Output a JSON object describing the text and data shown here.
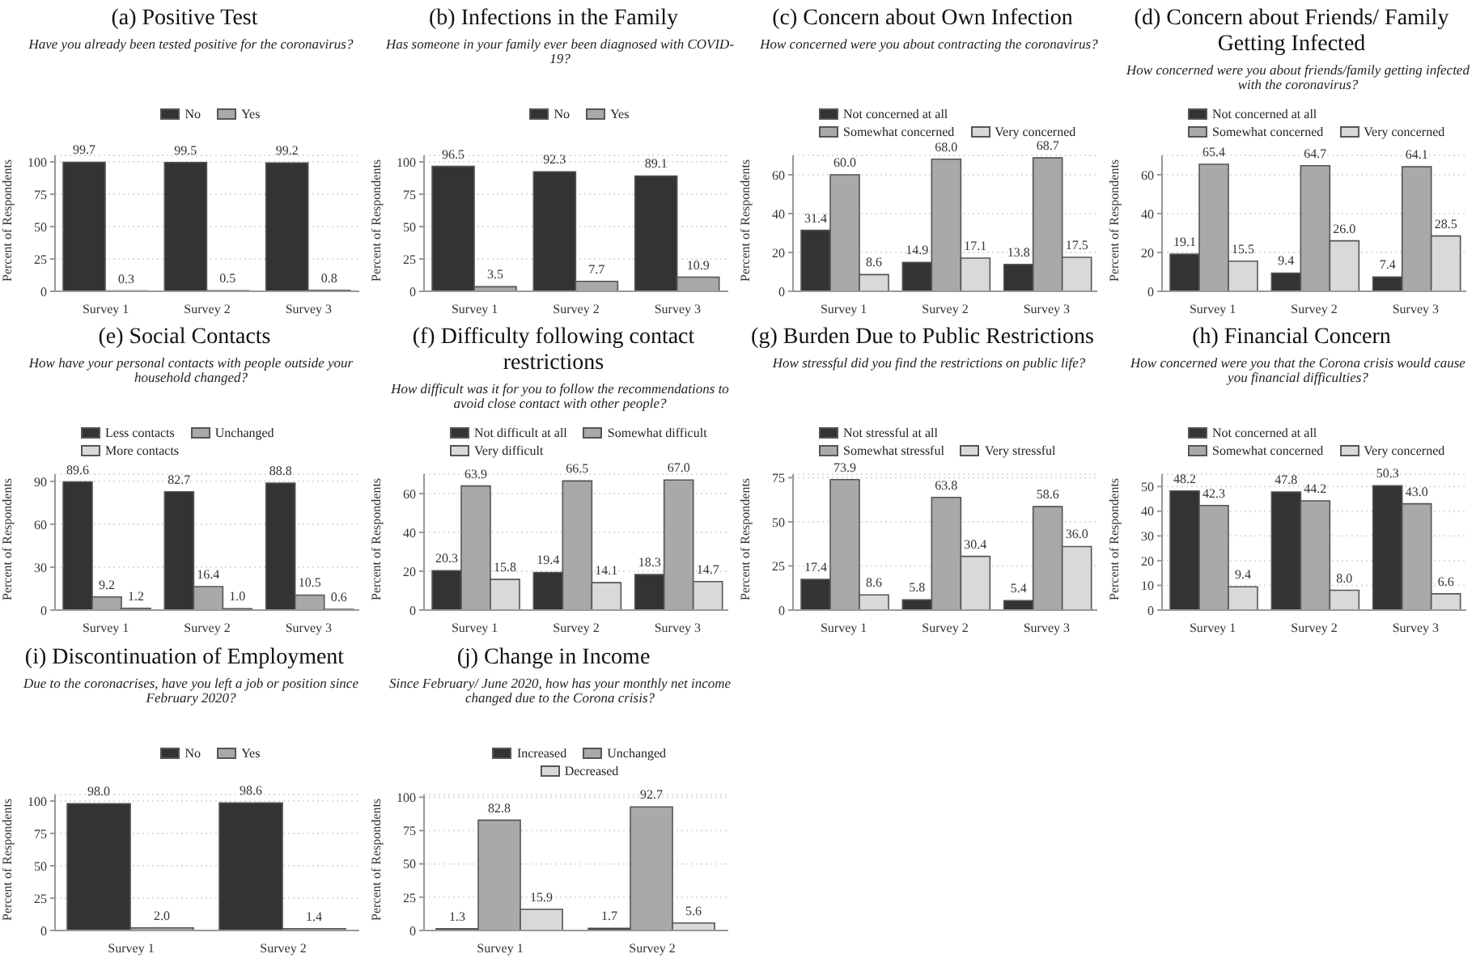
{
  "chart_data": [
    {
      "type": "bar",
      "title": "(a) Positive Test",
      "subtitle": "Have you already been tested positive for the coronavirus?",
      "ylabel": "Percent of Respondents",
      "categories": [
        "Survey 1",
        "Survey 2",
        "Survey 3"
      ],
      "series": [
        {
          "name": "No",
          "color": "#333333",
          "values": [
            99.7,
            99.5,
            99.2
          ],
          "value_labels": [
            "99.7",
            "99.5",
            "99.2"
          ]
        },
        {
          "name": "Yes",
          "color": "#a9a9a9",
          "values": [
            0.3,
            0.5,
            0.8
          ],
          "value_labels": [
            "0.3",
            "0.5",
            "0.8"
          ]
        }
      ],
      "ylim": [
        0,
        105
      ],
      "yticks": [
        0,
        25,
        50,
        75,
        100
      ],
      "grid": "y",
      "legend": "top"
    },
    {
      "type": "bar",
      "title": "(b) Infections in the Family",
      "subtitle": "Has someone in your family ever been diagnosed with COVID-19?",
      "ylabel": "Percent of Respondents",
      "categories": [
        "Survey 1",
        "Survey 2",
        "Survey 3"
      ],
      "series": [
        {
          "name": "No",
          "color": "#333333",
          "values": [
            96.5,
            92.3,
            89.1
          ],
          "value_labels": [
            "96.5",
            "92.3",
            "89.1"
          ]
        },
        {
          "name": "Yes",
          "color": "#a9a9a9",
          "values": [
            3.5,
            7.7,
            10.9
          ],
          "value_labels": [
            "3.5",
            "7.7",
            "10.9"
          ]
        }
      ],
      "ylim": [
        0,
        105
      ],
      "yticks": [
        0,
        25,
        50,
        75,
        100
      ],
      "grid": "y",
      "legend": "top"
    },
    {
      "type": "bar",
      "title": "(c) Concern about Own Infection",
      "subtitle": "How concerned were you about contracting the coronavirus?",
      "ylabel": "Percent of Respondents",
      "categories": [
        "Survey 1",
        "Survey 2",
        "Survey 3"
      ],
      "series": [
        {
          "name": "Not concerned at all",
          "color": "#333333",
          "values": [
            31.4,
            14.9,
            13.8
          ],
          "value_labels": [
            "31.4",
            "14.9",
            "13.8"
          ]
        },
        {
          "name": "Somewhat concerned",
          "color": "#a9a9a9",
          "values": [
            60.0,
            68.0,
            68.7
          ],
          "value_labels": [
            "60.0",
            "68.0",
            "68.7"
          ]
        },
        {
          "name": "Very concerned",
          "color": "#d9d9d9",
          "values": [
            8.6,
            17.1,
            17.5
          ],
          "value_labels": [
            "8.6",
            "17.1",
            "17.5"
          ]
        }
      ],
      "ylim": [
        0,
        70
      ],
      "yticks": [
        0,
        20,
        40,
        60
      ],
      "grid": "y",
      "legend": "top"
    },
    {
      "type": "bar",
      "title": "(d) Concern about Friends/ Family Getting Infected",
      "subtitle": "How concerned were you about friends/family getting infected with the coronavirus?",
      "ylabel": "Percent of Respondents",
      "categories": [
        "Survey 1",
        "Survey 2",
        "Survey 3"
      ],
      "series": [
        {
          "name": "Not concerned at all",
          "color": "#333333",
          "values": [
            19.1,
            9.4,
            7.4
          ],
          "value_labels": [
            "19.1",
            "9.4",
            "7.4"
          ]
        },
        {
          "name": "Somewhat concerned",
          "color": "#a9a9a9",
          "values": [
            65.4,
            64.7,
            64.1
          ],
          "value_labels": [
            "65.4",
            "64.7",
            "64.1"
          ]
        },
        {
          "name": "Very concerned",
          "color": "#d9d9d9",
          "values": [
            15.5,
            26.0,
            28.5
          ],
          "value_labels": [
            "15.5",
            "26.0",
            "28.5"
          ]
        }
      ],
      "ylim": [
        0,
        70
      ],
      "yticks": [
        0,
        20,
        40,
        60
      ],
      "grid": "y",
      "legend": "top"
    },
    {
      "type": "bar",
      "title": "(e) Social Contacts",
      "subtitle": "How have your personal contacts with people outside your household changed?",
      "ylabel": "Percent of Respondents",
      "categories": [
        "Survey 1",
        "Survey 2",
        "Survey 3"
      ],
      "series": [
        {
          "name": "Less contacts",
          "color": "#333333",
          "values": [
            89.6,
            82.7,
            88.8
          ],
          "value_labels": [
            "89.6",
            "82.7",
            "88.8"
          ]
        },
        {
          "name": "Unchanged",
          "color": "#a9a9a9",
          "values": [
            9.2,
            16.4,
            10.5
          ],
          "value_labels": [
            "9.2",
            "16.4",
            "10.5"
          ]
        },
        {
          "name": "More contacts",
          "color": "#d9d9d9",
          "values": [
            1.2,
            1.0,
            0.6
          ],
          "value_labels": [
            "1.2",
            "1.0",
            "0.6"
          ]
        }
      ],
      "ylim": [
        0,
        95
      ],
      "yticks": [
        0,
        30,
        60,
        90
      ],
      "grid": "y",
      "legend": "top"
    },
    {
      "type": "bar",
      "title": "(f) Difficulty following contact restrictions",
      "subtitle": "How difficult was it for you to follow the recommendations to avoid close contact with other people?",
      "ylabel": "Percent of Respondents",
      "categories": [
        "Survey 1",
        "Survey 2",
        "Survey 3"
      ],
      "series": [
        {
          "name": "Not difficult at all",
          "color": "#333333",
          "values": [
            20.3,
            19.4,
            18.3
          ],
          "value_labels": [
            "20.3",
            "19.4",
            "18.3"
          ]
        },
        {
          "name": "Somewhat difficult",
          "color": "#a9a9a9",
          "values": [
            63.9,
            66.5,
            67.0
          ],
          "value_labels": [
            "63.9",
            "66.5",
            "67.0"
          ]
        },
        {
          "name": "Very difficult",
          "color": "#d9d9d9",
          "values": [
            15.8,
            14.1,
            14.7
          ],
          "value_labels": [
            "15.8",
            "14.1",
            "14.7"
          ]
        }
      ],
      "ylim": [
        0,
        70
      ],
      "yticks": [
        0,
        20,
        40,
        60
      ],
      "grid": "y",
      "legend": "top"
    },
    {
      "type": "bar",
      "title": "(g) Burden Due to Public Restrictions",
      "subtitle": "How stressful did you find the restrictions on public life?",
      "ylabel": "Percent of Respondents",
      "categories": [
        "Survey 1",
        "Survey 2",
        "Survey 3"
      ],
      "series": [
        {
          "name": "Not stressful at all",
          "color": "#333333",
          "values": [
            17.4,
            5.8,
            5.4
          ],
          "value_labels": [
            "17.4",
            "5.8",
            "5.4"
          ]
        },
        {
          "name": "Somewhat stressful",
          "color": "#a9a9a9",
          "values": [
            73.9,
            63.8,
            58.6
          ],
          "value_labels": [
            "73.9",
            "63.8",
            "58.6"
          ]
        },
        {
          "name": "Very stressful",
          "color": "#d9d9d9",
          "values": [
            8.6,
            30.4,
            36.0
          ],
          "value_labels": [
            "8.6",
            "30.4",
            "36.0"
          ]
        }
      ],
      "ylim": [
        0,
        77
      ],
      "yticks": [
        0,
        25,
        50,
        75
      ],
      "grid": "y",
      "legend": "top"
    },
    {
      "type": "bar",
      "title": "(h) Financial Concern",
      "subtitle": "How concerned were you that the Corona crisis would cause you financial difficulties?",
      "ylabel": "Percent of Respondents",
      "categories": [
        "Survey 1",
        "Survey 2",
        "Survey 3"
      ],
      "series": [
        {
          "name": "Not concerned at all",
          "color": "#333333",
          "values": [
            48.2,
            47.8,
            50.3
          ],
          "value_labels": [
            "48.2",
            "47.8",
            "50.3"
          ]
        },
        {
          "name": "Somewhat concerned",
          "color": "#a9a9a9",
          "values": [
            42.3,
            44.2,
            43.0
          ],
          "value_labels": [
            "42.3",
            "44.2",
            "43.0"
          ]
        },
        {
          "name": "Very concerned",
          "color": "#d9d9d9",
          "values": [
            9.4,
            8.0,
            6.6
          ],
          "value_labels": [
            "9.4",
            "8.0",
            "6.6"
          ]
        }
      ],
      "ylim": [
        0,
        55
      ],
      "yticks": [
        0,
        10,
        20,
        30,
        40,
        50
      ],
      "grid": "y",
      "legend": "top"
    },
    {
      "type": "bar",
      "title": "(i) Discontinuation of Employment",
      "subtitle": "Due to the coronacrises, have you left a job or position since February 2020?",
      "ylabel": "Percent of Respondents",
      "categories": [
        "Survey 1",
        "Survey 2"
      ],
      "series": [
        {
          "name": "No",
          "color": "#333333",
          "values": [
            98.0,
            98.6
          ],
          "value_labels": [
            "98.0",
            "98.6"
          ]
        },
        {
          "name": "Yes",
          "color": "#a9a9a9",
          "values": [
            2.0,
            1.4
          ],
          "value_labels": [
            "2.0",
            "1.4"
          ]
        }
      ],
      "ylim": [
        0,
        105
      ],
      "yticks": [
        0,
        25,
        50,
        75,
        100
      ],
      "grid": "y",
      "legend": "top"
    },
    {
      "type": "bar",
      "title": "(j) Change in Income",
      "subtitle": "Since February/ June 2020, how has your monthly net income changed due to the Corona crisis?",
      "ylabel": "Percent of Respondents",
      "categories": [
        "Survey 1",
        "Survey 2"
      ],
      "series": [
        {
          "name": "Increased",
          "color": "#333333",
          "values": [
            1.3,
            1.7
          ],
          "value_labels": [
            "1.3",
            "1.7"
          ]
        },
        {
          "name": "Unchanged",
          "color": "#a9a9a9",
          "values": [
            82.8,
            92.7
          ],
          "value_labels": [
            "82.8",
            "92.7"
          ]
        },
        {
          "name": "Decreased",
          "color": "#d9d9d9",
          "values": [
            15.9,
            5.6
          ],
          "value_labels": [
            "15.9",
            "5.6"
          ]
        }
      ],
      "ylim": [
        0,
        102
      ],
      "yticks": [
        0,
        25,
        50,
        75,
        100
      ],
      "grid": "y",
      "legend": "top"
    }
  ]
}
